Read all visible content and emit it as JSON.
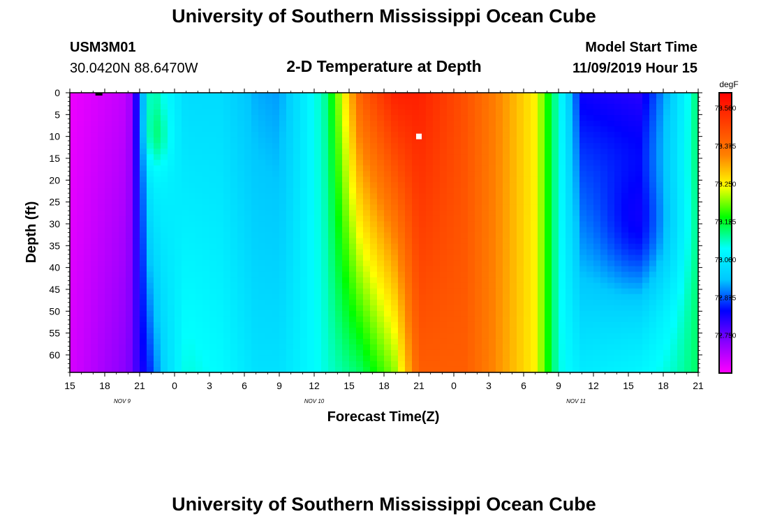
{
  "header": {
    "title": "University of Southern Mississippi Ocean Cube",
    "station": "USM3M01",
    "location": "30.0420N 88.6470W",
    "plot_title": "2-D Temperature at Depth",
    "model_start_label": "Model Start Time",
    "model_start_value": "11/09/2019 Hour 15"
  },
  "footer": {
    "title": "University of Southern Mississippi Ocean Cube"
  },
  "chart_data": {
    "type": "heatmap",
    "title": "2-D Temperature at Depth",
    "xlabel": "Forecast Time(Z)",
    "ylabel": "Depth (ft)",
    "x_tick_labels": [
      "15",
      "18",
      "21",
      "0",
      "3",
      "6",
      "9",
      "12",
      "15",
      "18",
      "21",
      "0",
      "3",
      "6",
      "9",
      "12",
      "15",
      "18",
      "21"
    ],
    "x_day_labels": [
      {
        "label": "NOV  9",
        "tick_index": 1.5
      },
      {
        "label": "NOV  10",
        "tick_index": 7
      },
      {
        "label": "NOV  11",
        "tick_index": 14.5
      }
    ],
    "y_tick_labels": [
      "0",
      "5",
      "10",
      "15",
      "20",
      "25",
      "30",
      "35",
      "40",
      "45",
      "50",
      "55",
      "60"
    ],
    "ylim": [
      0,
      64
    ],
    "colorbar": {
      "unit": "degF",
      "labels": [
        "73.500",
        "73.375",
        "73.250",
        "73.125",
        "73.000",
        "72.875",
        "72.750"
      ],
      "range": [
        72.625,
        73.55
      ],
      "colors": [
        "#ff00ff",
        "#8800ff",
        "#0000ff",
        "#00c8ff",
        "#00ffff",
        "#00ff00",
        "#ffff00",
        "#ff8000",
        "#ff4000",
        "#ff0000"
      ]
    },
    "markers": [
      {
        "name": "black",
        "x_hours": 2.5,
        "depth": 0,
        "color": "#000000"
      },
      {
        "name": "white",
        "x_hours": 30,
        "depth": 10,
        "color": "#ffffff"
      }
    ],
    "grid_x_hours": 54,
    "grid_depth_ft": 64,
    "temperature_profile_by_hour": [
      {
        "hour": 0,
        "surface": 72.64,
        "bottom": 72.66
      },
      {
        "hour": 5,
        "surface": 72.68,
        "bottom": 72.73
      },
      {
        "hour": 6,
        "surface": 72.86,
        "bottom": 72.8
      },
      {
        "hour": 7,
        "surface": 73.08,
        "bottom": 72.86
      },
      {
        "hour": 8,
        "surface": 73.04,
        "bottom": 72.95
      },
      {
        "hour": 10,
        "surface": 72.97,
        "bottom": 73.05
      },
      {
        "hour": 13,
        "surface": 72.97,
        "bottom": 73.03
      },
      {
        "hour": 16,
        "surface": 72.92,
        "bottom": 72.98
      },
      {
        "hour": 18,
        "surface": 72.91,
        "bottom": 72.98
      },
      {
        "hour": 22,
        "surface": 73.08,
        "bottom": 73.05
      },
      {
        "hour": 25,
        "surface": 73.4,
        "bottom": 73.1
      },
      {
        "hour": 28,
        "surface": 73.5,
        "bottom": 73.2
      },
      {
        "hour": 30,
        "surface": 73.5,
        "bottom": 73.4
      },
      {
        "hour": 34,
        "surface": 73.42,
        "bottom": 73.4
      },
      {
        "hour": 40,
        "surface": 73.25,
        "bottom": 73.25
      },
      {
        "hour": 42,
        "surface": 73.05,
        "bottom": 73.05
      },
      {
        "hour": 44,
        "surface": 72.82,
        "bottom": 73.0
      },
      {
        "hour": 49,
        "surface": 72.8,
        "bottom": 73.02
      },
      {
        "hour": 52,
        "surface": 72.96,
        "bottom": 73.06
      },
      {
        "hour": 54,
        "surface": 73.1,
        "bottom": 73.1
      }
    ]
  }
}
